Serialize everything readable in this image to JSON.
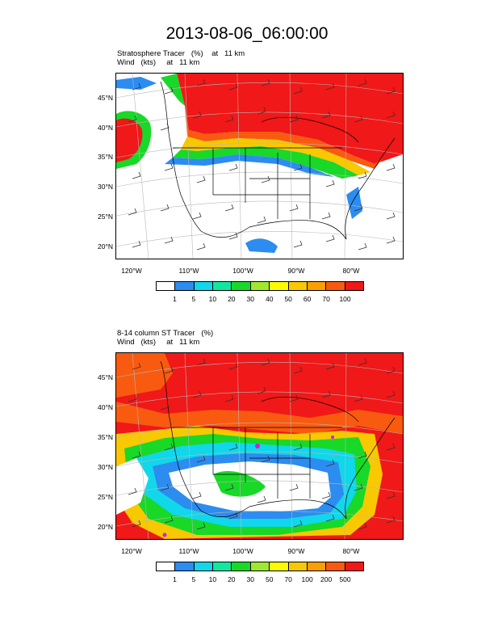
{
  "title": "2013-08-06_06:00:00",
  "panels": [
    {
      "title_line1": "Stratosphere Tracer   (%)    at   11 km",
      "title_line2": "Wind   (kts)     at   11 km",
      "lat_labels": [
        "45°N",
        "40°N",
        "35°N",
        "30°N",
        "25°N",
        "20°N"
      ],
      "lon_labels": [
        "120°W",
        "110°W",
        "100°W",
        "90°W",
        "80°W"
      ],
      "colorbar_colors": [
        "#ffffff",
        "#2c8cf0",
        "#10d7ea",
        "#10e8a0",
        "#18d828",
        "#a0e830",
        "#fafa00",
        "#f8c800",
        "#f8a000",
        "#f85a10",
        "#f01818"
      ],
      "colorbar_labels": [
        "1",
        "5",
        "10",
        "20",
        "30",
        "40",
        "50",
        "60",
        "70",
        "100"
      ]
    },
    {
      "title_line1": "8-14 column ST Tracer   (%)",
      "title_line2": "Wind   (kts)     at   11 km",
      "lat_labels": [
        "45°N",
        "40°N",
        "35°N",
        "30°N",
        "25°N",
        "20°N"
      ],
      "lon_labels": [
        "120°W",
        "110°W",
        "100°W",
        "90°W",
        "80°W"
      ],
      "colorbar_colors": [
        "#ffffff",
        "#2c8cf0",
        "#10d7ea",
        "#10e8a0",
        "#18d828",
        "#a0e830",
        "#fafa00",
        "#f8c800",
        "#f8a000",
        "#f85a10",
        "#f01818"
      ],
      "colorbar_labels": [
        "1",
        "5",
        "10",
        "20",
        "30",
        "50",
        "70",
        "100",
        "200",
        "500"
      ]
    }
  ]
}
